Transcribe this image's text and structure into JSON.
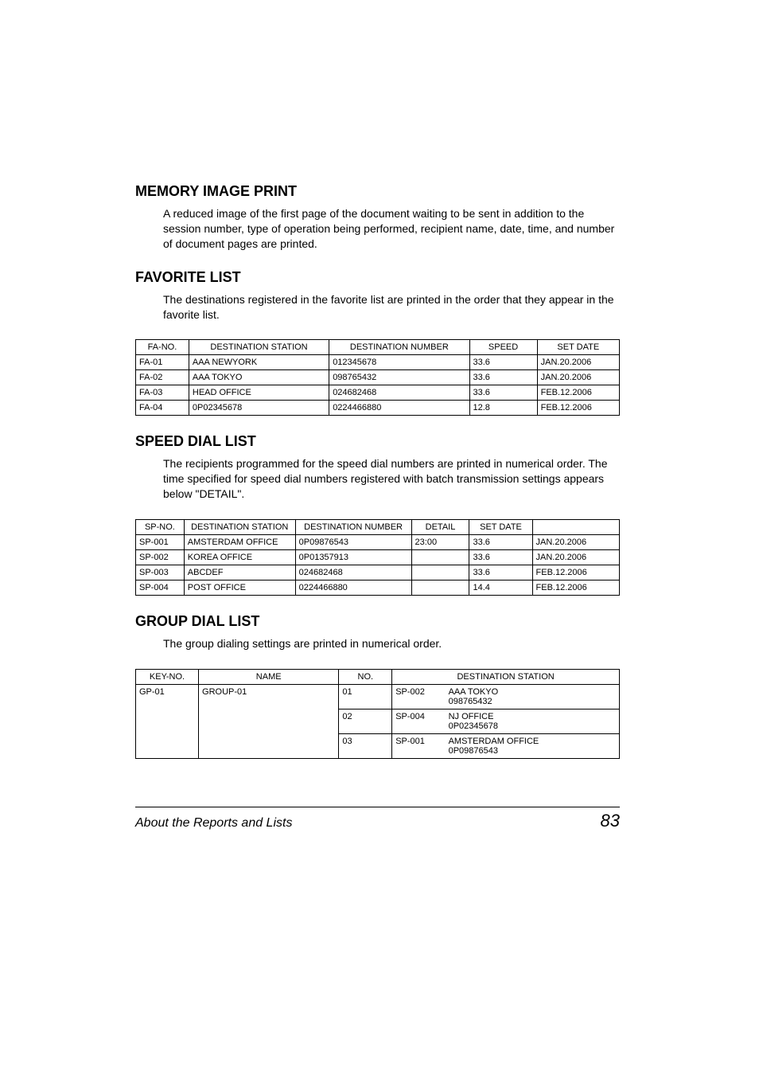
{
  "sections": {
    "memory": {
      "title": "MEMORY IMAGE PRINT",
      "body": "A reduced image of the first page of the document waiting to be sent in addition to the session number, type of operation being performed, recipient name, date, time, and number of document pages are printed."
    },
    "favorite": {
      "title": "FAVORITE LIST",
      "body": "The destinations registered in the favorite list are printed in the order that they appear in the favorite list.",
      "headers": [
        "FA-NO.",
        "DESTINATION STATION",
        "DESTINATION NUMBER",
        "SPEED",
        "SET DATE"
      ],
      "rows": [
        [
          "FA-01",
          "AAA NEWYORK",
          "012345678",
          "33.6",
          "JAN.20.2006"
        ],
        [
          "FA-02",
          "AAA TOKYO",
          "098765432",
          "33.6",
          "JAN.20.2006"
        ],
        [
          "FA-03",
          "HEAD OFFICE",
          "024682468",
          "33.6",
          "FEB.12.2006"
        ],
        [
          "FA-04",
          "0P02345678",
          "0224466880",
          "12.8",
          "FEB.12.2006"
        ]
      ],
      "col_widths": [
        "11%",
        "29%",
        "29%",
        "14%",
        "17%"
      ]
    },
    "speed": {
      "title": "SPEED DIAL LIST",
      "body": "The recipients programmed for the speed dial numbers are printed in numerical order. The time specified for speed dial numbers registered with batch transmission settings appears below \"DETAIL\".",
      "headers": [
        "SP-NO.",
        "DESTINATION STATION",
        "DESTINATION NUMBER",
        "DETAIL",
        "SET DATE",
        ""
      ],
      "rows": [
        [
          "SP-001",
          "AMSTERDAM OFFICE",
          "0P09876543",
          "23:00",
          "33.6",
          "JAN.20.2006"
        ],
        [
          "SP-002",
          "KOREA OFFICE",
          "0P01357913",
          "",
          "33.6",
          "JAN.20.2006"
        ],
        [
          "SP-003",
          "ABCDEF",
          "024682468",
          "",
          "33.6",
          "FEB.12.2006"
        ],
        [
          "SP-004",
          "POST OFFICE",
          "0224466880",
          "",
          "14.4",
          "FEB.12.2006"
        ]
      ],
      "col_widths": [
        "10%",
        "23%",
        "24%",
        "12%",
        "13%",
        "18%"
      ]
    },
    "group": {
      "title": "GROUP DIAL LIST",
      "body": "The group dialing settings are printed in numerical order.",
      "headers": [
        "KEY-NO.",
        "NAME",
        "NO.",
        "DESTINATION STATION"
      ],
      "rows": [
        {
          "key": "GP-01",
          "name": "GROUP-01",
          "no": "01",
          "sp": "SP-002",
          "dest": "AAA TOKYO",
          "num": "098765432"
        },
        {
          "no": "02",
          "sp": "SP-004",
          "dest": "NJ OFFICE",
          "num": "0P02345678"
        },
        {
          "no": "03",
          "sp": "SP-001",
          "dest": "AMSTERDAM OFFICE",
          "num": "0P09876543"
        }
      ],
      "col_widths": [
        "13%",
        "29%",
        "11%",
        "11%",
        "36%"
      ]
    }
  },
  "footer": {
    "title": "About the Reports and Lists",
    "page": "83"
  }
}
